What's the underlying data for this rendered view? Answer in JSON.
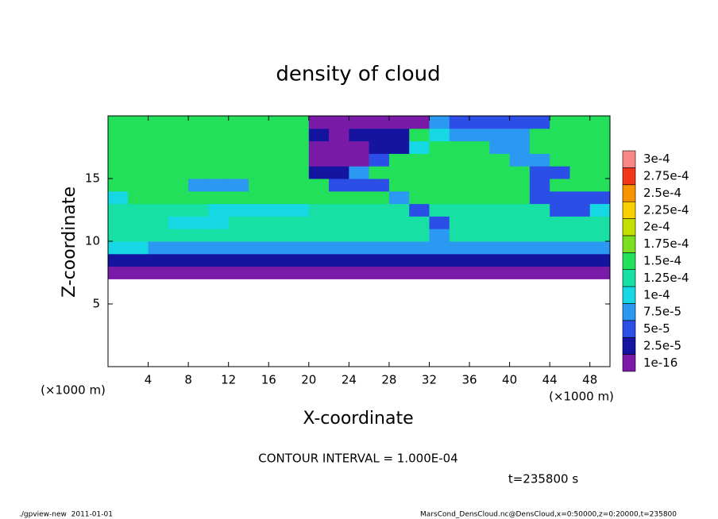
{
  "chart_data": {
    "type": "heatmap",
    "title": "density of cloud",
    "xlabel": "X-coordinate",
    "ylabel": "Z-coordinate",
    "xunit": "(×1000 m)",
    "yunit": "(×1000 m)",
    "xlim": [
      0,
      50
    ],
    "ylim": [
      0,
      20
    ],
    "xticks": [
      4,
      8,
      12,
      16,
      20,
      24,
      28,
      32,
      36,
      40,
      44,
      48
    ],
    "yticks": [
      5,
      10,
      15
    ],
    "x": [
      1,
      3,
      5,
      7,
      9,
      11,
      13,
      15,
      17,
      19,
      21,
      23,
      25,
      27,
      29,
      31,
      33,
      35,
      37,
      39,
      41,
      43,
      45,
      47,
      49
    ],
    "y": [
      7.5,
      8.5,
      9.5,
      10.5,
      11.5,
      12.5,
      13.5,
      14.5,
      15.5,
      16.5,
      17.5,
      18.5,
      19.5
    ],
    "values": [
      [
        1e-05,
        1e-05,
        1e-05,
        1e-05,
        1e-05,
        1e-05,
        1e-05,
        1e-05,
        1e-05,
        1e-05,
        1e-05,
        1e-05,
        1e-05,
        1e-05,
        1e-05,
        1e-05,
        1e-05,
        1e-05,
        1e-05,
        1e-05,
        1e-05,
        1e-05,
        1e-05,
        1e-05,
        1e-05
      ],
      [
        4e-05,
        4e-05,
        4e-05,
        4e-05,
        4e-05,
        4e-05,
        4e-05,
        4e-05,
        4e-05,
        4e-05,
        4e-05,
        4e-05,
        4e-05,
        4e-05,
        4e-05,
        4e-05,
        4e-05,
        4e-05,
        4e-05,
        4e-05,
        4e-05,
        4e-05,
        4e-05,
        4e-05,
        4e-05
      ],
      [
        0.00011,
        0.00011,
        9e-05,
        9e-05,
        9e-05,
        9e-05,
        9e-05,
        9e-05,
        9e-05,
        9e-05,
        9e-05,
        9e-05,
        9e-05,
        9e-05,
        9e-05,
        9e-05,
        8e-05,
        9e-05,
        9e-05,
        9e-05,
        9e-05,
        9e-05,
        9e-05,
        9e-05,
        9e-05
      ],
      [
        0.00013,
        0.00013,
        0.00013,
        0.00013,
        0.00013,
        0.00013,
        0.00013,
        0.00013,
        0.00013,
        0.00013,
        0.00013,
        0.00013,
        0.00013,
        0.00013,
        0.00013,
        0.00013,
        8e-05,
        0.00013,
        0.00013,
        0.00013,
        0.00013,
        0.00013,
        0.00013,
        0.00013,
        0.00013
      ],
      [
        0.00014,
        0.00014,
        0.00014,
        0.00011,
        0.00011,
        0.00011,
        0.00014,
        0.00014,
        0.00014,
        0.00014,
        0.00014,
        0.00014,
        0.00014,
        0.00014,
        0.00014,
        0.00014,
        6e-05,
        0.00014,
        0.00014,
        0.00014,
        0.00014,
        0.00014,
        0.00014,
        0.00014,
        0.00014
      ],
      [
        0.000145,
        0.000145,
        0.000145,
        0.000145,
        0.000145,
        0.00011,
        0.00011,
        0.00011,
        0.00011,
        0.00011,
        0.000145,
        0.000145,
        0.000145,
        0.000145,
        0.000145,
        7e-05,
        0.000145,
        0.000145,
        0.000145,
        0.000145,
        0.000145,
        0.000145,
        6e-05,
        6e-05,
        0.00012
      ],
      [
        0.0001,
        0.00015,
        0.00015,
        0.00015,
        0.00015,
        0.00015,
        0.00015,
        0.00015,
        0.00015,
        0.00015,
        0.00015,
        0.00015,
        0.00015,
        0.00015,
        8e-05,
        0.00015,
        0.00015,
        0.00015,
        0.00015,
        0.00015,
        0.00015,
        6e-05,
        6e-05,
        7e-05,
        7e-05
      ],
      [
        0.000155,
        0.000155,
        0.000155,
        0.000155,
        8e-05,
        8e-05,
        8e-05,
        0.000155,
        0.000155,
        0.000155,
        0.000155,
        7e-05,
        7e-05,
        7e-05,
        0.000155,
        0.000155,
        0.000155,
        0.000155,
        0.000155,
        0.000155,
        0.000155,
        5e-05,
        0.000155,
        0.000155,
        0.000155
      ],
      [
        0.000155,
        0.000155,
        0.000155,
        0.000155,
        0.000155,
        0.000155,
        0.000155,
        0.000155,
        0.000155,
        0.000155,
        4e-05,
        4e-05,
        9e-05,
        0.000155,
        0.000155,
        0.000155,
        0.000155,
        0.000155,
        0.000155,
        0.000155,
        0.000155,
        6e-05,
        6e-05,
        0.000155,
        0.000155
      ],
      [
        0.000155,
        0.000155,
        0.000155,
        0.000155,
        0.000155,
        0.000155,
        0.000155,
        0.000155,
        0.000155,
        0.000155,
        1e-05,
        1e-05,
        1e-05,
        5e-05,
        0.000155,
        0.000155,
        0.000155,
        0.000155,
        0.000155,
        0.000155,
        8e-05,
        8e-05,
        0.000155,
        0.000155,
        0.000155
      ],
      [
        0.000155,
        0.000155,
        0.000155,
        0.000155,
        0.000155,
        0.000155,
        0.000155,
        0.000155,
        0.000155,
        0.000155,
        1e-05,
        1e-05,
        1e-05,
        3e-05,
        3e-05,
        0.0001,
        0.000155,
        0.000155,
        0.000155,
        9e-05,
        9e-05,
        0.000155,
        0.000155,
        0.000155,
        0.000155
      ],
      [
        0.000155,
        0.000155,
        0.000155,
        0.000155,
        0.000155,
        0.000155,
        0.000155,
        0.000155,
        0.000155,
        0.000155,
        3e-05,
        1e-05,
        3e-05,
        3e-05,
        3e-05,
        0.000155,
        0.00012,
        8e-05,
        8e-05,
        8e-05,
        8e-05,
        0.000155,
        0.000155,
        0.000155,
        0.000155
      ],
      [
        0.000155,
        0.000155,
        0.000155,
        0.000155,
        0.000155,
        0.000155,
        0.000155,
        0.000155,
        0.000155,
        0.000155,
        2e-05,
        2e-05,
        2e-05,
        2e-05,
        2e-05,
        2e-05,
        8e-05,
        7e-05,
        7e-05,
        7e-05,
        7e-05,
        7e-05,
        0.00015,
        0.00015,
        0.00015
      ]
    ],
    "levels": [
      {
        "value": 1e-16,
        "label": "1e-16"
      },
      {
        "value": 2.5e-05,
        "label": "2.5e-5"
      },
      {
        "value": 5e-05,
        "label": "5e-5"
      },
      {
        "value": 7.5e-05,
        "label": "7.5e-5"
      },
      {
        "value": 0.0001,
        "label": "1e-4"
      },
      {
        "value": 0.000125,
        "label": "1.25e-4"
      },
      {
        "value": 0.00015,
        "label": "1.5e-4"
      },
      {
        "value": 0.000175,
        "label": "1.75e-4"
      },
      {
        "value": 0.0002,
        "label": "2e-4"
      },
      {
        "value": 0.000225,
        "label": "2.25e-4"
      },
      {
        "value": 0.00025,
        "label": "2.5e-4"
      },
      {
        "value": 0.000275,
        "label": "2.75e-4"
      },
      {
        "value": 0.0003,
        "label": "3e-4"
      }
    ],
    "colors": [
      "#7a1aa8",
      "#1414a0",
      "#2a4ee6",
      "#2b98f2",
      "#16d8e4",
      "#18e0a4",
      "#22e05a",
      "#7ce020",
      "#c4e000",
      "#f8d000",
      "#f89400",
      "#f03818",
      "#f88888"
    ],
    "contour_interval": "CONTOUR INTERVAL = 1.000E-04",
    "time": "t=235800 s"
  },
  "footer": {
    "left": "./gpview-new  2011-01-01",
    "right": "MarsCond_DensCloud.nc@DensCloud,x=0:50000,z=0:20000,t=235800"
  }
}
